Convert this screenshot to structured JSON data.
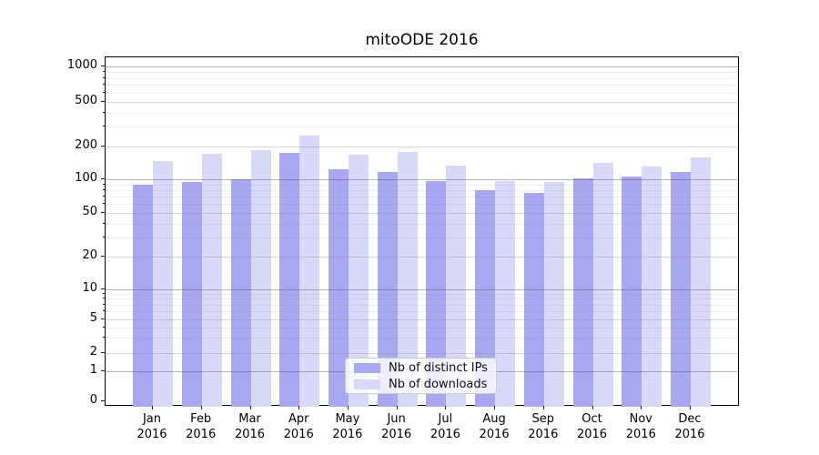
{
  "title": "mitoODE 2016",
  "chart_data": {
    "type": "bar",
    "title": "mitoODE 2016",
    "categories": [
      "Jan 2016",
      "Feb 2016",
      "Mar 2016",
      "Apr 2016",
      "May 2016",
      "Jun 2016",
      "Jul 2016",
      "Aug 2016",
      "Sep 2016",
      "Oct 2016",
      "Nov 2016",
      "Dec 2016"
    ],
    "x_tick_month_labels": [
      "Jan",
      "Feb",
      "Mar",
      "Apr",
      "May",
      "Jun",
      "Jul",
      "Aug",
      "Sep",
      "Oct",
      "Nov",
      "Dec"
    ],
    "x_tick_year_label": "2016",
    "series": [
      {
        "name": "Nb of distinct IPs",
        "color": "#a8a8f2",
        "values": [
          90,
          95,
          100,
          175,
          123,
          116,
          96,
          80,
          75,
          102,
          106,
          116
        ]
      },
      {
        "name": "Nb of downloads",
        "color": "#d8d8f8",
        "values": [
          146,
          170,
          184,
          250,
          167,
          177,
          132,
          96,
          95,
          141,
          130,
          158
        ]
      }
    ],
    "yscale": "symlog",
    "ylabel": "",
    "xlabel": "",
    "yticks": [
      0,
      1,
      2,
      5,
      10,
      20,
      50,
      100,
      200,
      500,
      1000
    ],
    "minor_gridline_values": [
      3,
      4,
      6,
      7,
      8,
      9,
      30,
      40,
      60,
      70,
      80,
      90,
      300,
      400,
      600,
      700,
      800,
      900
    ],
    "ylim": [
      0,
      1200
    ],
    "grid": "both, drawn above bars",
    "legend_position": "lower center"
  },
  "colors": {
    "bar_dark": "#a8a8f2",
    "bar_light": "#d8d8f8",
    "spine": "#000000",
    "grid_major_power10": "rgba(80,80,80,0.42)",
    "grid_major": "rgba(125,125,125,0.30)",
    "grid_minor": "rgba(125,125,125,0.13)"
  }
}
